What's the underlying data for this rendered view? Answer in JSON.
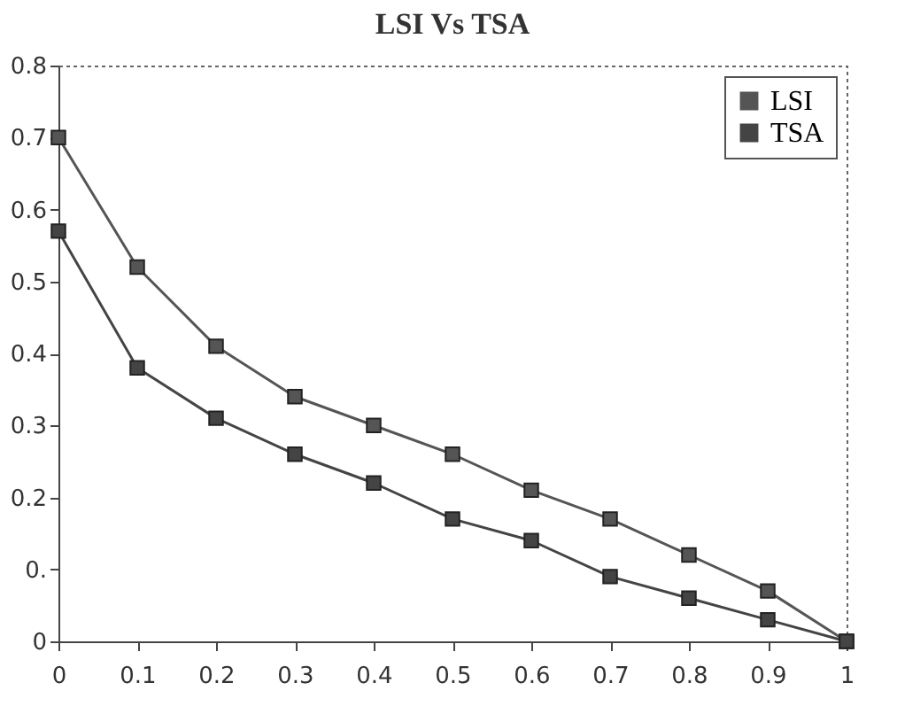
{
  "chart_data": {
    "type": "line",
    "title": "LSI Vs TSA",
    "x": [
      0,
      0.1,
      0.2,
      0.3,
      0.4,
      0.5,
      0.6,
      0.7,
      0.8,
      0.9,
      1
    ],
    "series": [
      {
        "name": "LSI",
        "color": "#555555",
        "values": [
          0.7,
          0.52,
          0.41,
          0.34,
          0.3,
          0.26,
          0.21,
          0.17,
          0.12,
          0.07,
          0
        ]
      },
      {
        "name": "TSA",
        "color": "#444444",
        "values": [
          0.57,
          0.38,
          0.31,
          0.26,
          0.22,
          0.17,
          0.14,
          0.09,
          0.06,
          0.03,
          0
        ]
      }
    ],
    "xlim": [
      0,
      1
    ],
    "xticks": [
      0,
      0.1,
      0.2,
      0.3,
      0.4,
      0.5,
      0.6,
      0.7,
      0.8,
      0.9,
      1
    ],
    "ylim": [
      0,
      0.8
    ],
    "yticks": [
      0,
      {
        "value": 0.1,
        "label": "0."
      },
      0.2,
      0.3,
      0.4,
      0.5,
      0.6,
      0.7,
      0.8
    ],
    "marker": "square",
    "legend": "top right",
    "grid": false
  }
}
